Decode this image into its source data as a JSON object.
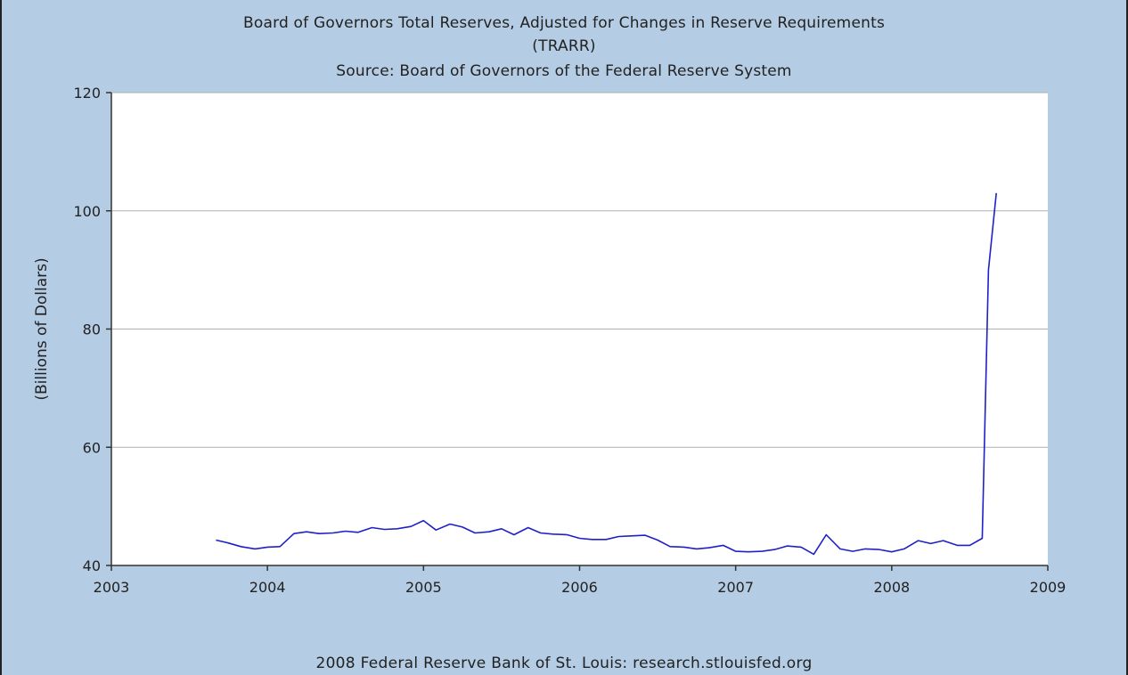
{
  "chart_data": {
    "type": "line",
    "title": "Board of Governors Total Reserves, Adjusted for Changes in Reserve Requirements",
    "title_code": "(TRARR)",
    "subtitle": "Source: Board of Governors of the Federal Reserve System",
    "xlabel": "",
    "ylabel": "(Billions of Dollars)",
    "footer": "2008 Federal Reserve Bank of St. Louis: research.stlouisfed.org",
    "xlim": [
      2003,
      2009
    ],
    "ylim": [
      40,
      120
    ],
    "xticks": [
      2003,
      2004,
      2005,
      2006,
      2007,
      2008,
      2009
    ],
    "xtick_labels": [
      "2003",
      "2004",
      "2005",
      "2006",
      "2007",
      "2008",
      "2009"
    ],
    "yticks": [
      40,
      60,
      80,
      100,
      120
    ],
    "ytick_labels": [
      "40",
      "60",
      "80",
      "100",
      "120"
    ],
    "grid": true,
    "legend": "none",
    "colors": {
      "line": "#2020c8",
      "background": "#b4cce4",
      "plot": "#ffffff",
      "grid": "#b0b0b0"
    },
    "series": [
      {
        "x": [
          2003.67,
          2003.75,
          2003.83,
          2003.92,
          2004.0,
          2004.08,
          2004.17,
          2004.25,
          2004.33,
          2004.42,
          2004.5,
          2004.58,
          2004.67,
          2004.75,
          2004.83,
          2004.92,
          2005.0,
          2005.08,
          2005.17,
          2005.25,
          2005.33,
          2005.42,
          2005.5,
          2005.58,
          2005.67,
          2005.75,
          2005.83,
          2005.92,
          2006.0,
          2006.08,
          2006.17,
          2006.25,
          2006.33,
          2006.42,
          2006.5,
          2006.58,
          2006.67,
          2006.75,
          2006.83,
          2006.92,
          2007.0,
          2007.08,
          2007.17,
          2007.25,
          2007.33,
          2007.42,
          2007.5,
          2007.58,
          2007.67,
          2007.75,
          2007.83,
          2007.92,
          2008.0,
          2008.08,
          2008.17,
          2008.25,
          2008.33,
          2008.42,
          2008.5,
          2008.58,
          2008.62,
          2008.67
        ],
        "values": [
          44.3,
          43.8,
          43.2,
          42.8,
          43.1,
          43.2,
          45.4,
          45.7,
          45.4,
          45.5,
          45.8,
          45.6,
          46.4,
          46.1,
          46.2,
          46.6,
          47.6,
          46.0,
          47.0,
          46.5,
          45.5,
          45.7,
          46.2,
          45.2,
          46.4,
          45.5,
          45.3,
          45.2,
          44.6,
          44.4,
          44.4,
          44.9,
          45.0,
          45.1,
          44.3,
          43.2,
          43.1,
          42.8,
          43.0,
          43.4,
          42.4,
          42.3,
          42.4,
          42.7,
          43.3,
          43.1,
          41.9,
          45.2,
          42.8,
          42.4,
          42.8,
          42.7,
          42.3,
          42.8,
          44.2,
          43.7,
          44.2,
          43.4,
          43.4,
          44.6,
          90.0,
          103.0
        ]
      }
    ]
  }
}
